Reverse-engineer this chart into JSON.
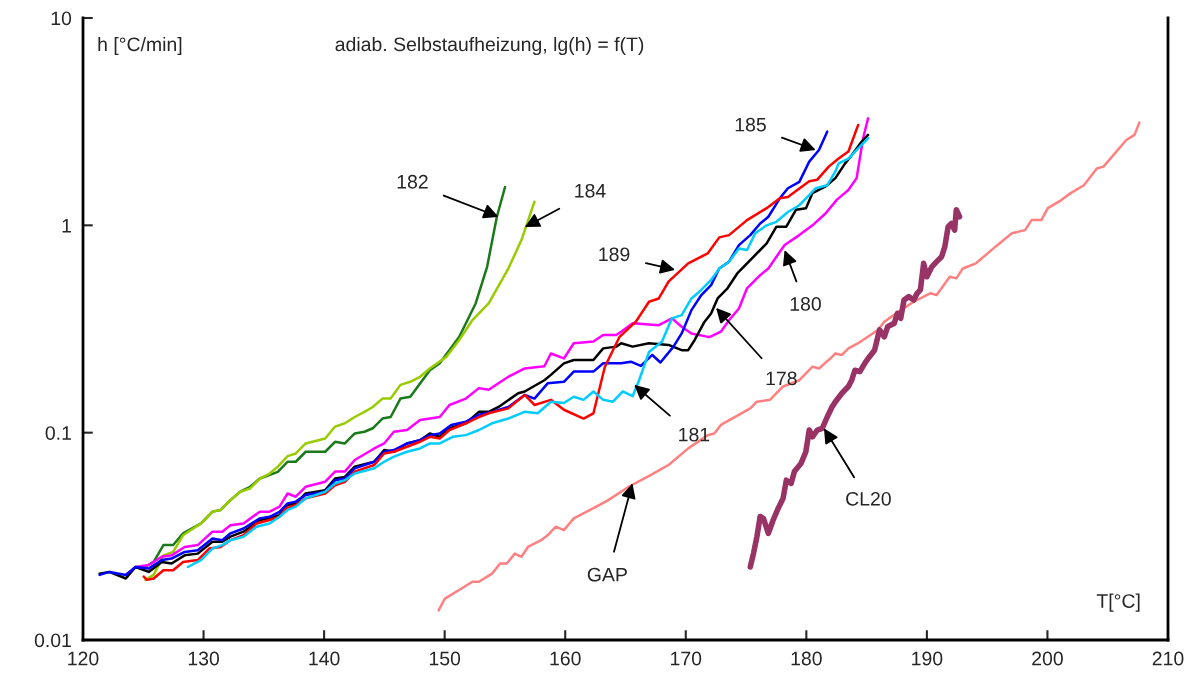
{
  "chart_data": {
    "type": "line",
    "title": "adiab. Selbstaufheizung, lg(h) = f(T)",
    "ylabel": "h [°C/min]",
    "xlabel": "T[°C]",
    "log": "y",
    "xlim": [
      120,
      210
    ],
    "xticks": [
      120,
      130,
      140,
      150,
      160,
      170,
      180,
      190,
      200,
      210
    ],
    "ylim": [
      0.01,
      10
    ],
    "yticks": [
      0.01,
      0.1,
      1,
      10
    ],
    "series": [
      {
        "color": "#1a7a1a",
        "x": [
          124.91,
          125.86,
          126.67,
          127.48,
          128.3,
          129.79,
          130.74,
          131.42,
          132.23,
          133.04,
          133.86,
          134.67,
          136.16,
          136.97,
          137.65,
          138.47,
          140.09,
          140.91,
          141.72,
          142.54,
          143.35,
          144.03,
          144.84,
          145.52,
          146.33,
          147.15,
          148.77,
          149.59,
          151.21,
          152.57,
          153.52,
          154.33,
          155.01
        ],
        "values": [
          0.0221,
          0.0238,
          0.0287,
          0.0287,
          0.0327,
          0.0365,
          0.0416,
          0.0424,
          0.0473,
          0.0519,
          0.0548,
          0.0601,
          0.0647,
          0.0724,
          0.0724,
          0.0809,
          0.0809,
          0.0904,
          0.0887,
          0.0991,
          0.101,
          0.105,
          0.117,
          0.119,
          0.146,
          0.149,
          0.2,
          0.216,
          0.29,
          0.42,
          0.631,
          1.1,
          1.53
        ]
      },
      {
        "color": "#99cc00",
        "x": [
          125.18,
          125.86,
          126.67,
          127.48,
          128.3,
          129.79,
          130.74,
          131.42,
          132.23,
          133.04,
          133.86,
          134.67,
          135.48,
          136.16,
          136.97,
          137.65,
          138.47,
          140.09,
          140.91,
          141.72,
          142.54,
          143.35,
          144.03,
          144.84,
          145.52,
          146.33,
          147.15,
          147.96,
          148.77,
          150.13,
          151.21,
          152.3,
          153.65,
          155.28,
          156.37,
          157.45
        ],
        "values": [
          0.0195,
          0.0206,
          0.0256,
          0.0266,
          0.032,
          0.0365,
          0.0416,
          0.0424,
          0.0473,
          0.0519,
          0.0538,
          0.0601,
          0.0635,
          0.0686,
          0.0771,
          0.0794,
          0.0887,
          0.0938,
          0.107,
          0.111,
          0.119,
          0.126,
          0.133,
          0.146,
          0.146,
          0.17,
          0.176,
          0.186,
          0.204,
          0.232,
          0.28,
          0.349,
          0.42,
          0.619,
          0.849,
          1.3
        ]
      },
      {
        "color": "#ff00ff",
        "x": [
          123.55,
          124.36,
          125.45,
          126.53,
          127.35,
          128.43,
          129.52,
          130.74,
          131.55,
          132.23,
          133.31,
          134.67,
          135.48,
          136.3,
          136.97,
          137.65,
          138.47,
          140.09,
          140.91,
          141.72,
          142.54,
          144.16,
          144.98,
          145.79,
          146.88,
          147.96,
          149.59,
          150.4,
          151.76,
          152.84,
          153.65,
          155.28,
          156.64,
          158.27,
          158.81,
          159.89,
          160.71,
          162.34,
          163.15,
          164.23,
          164.64,
          165.59,
          167.76,
          168.85,
          169.66,
          170.47,
          171.96,
          172.91,
          173.59,
          174.41,
          175.08,
          176.17,
          176.85,
          177.52,
          178.2,
          179.42,
          180.51,
          181.59,
          182.54,
          183.49,
          184.17,
          184.71,
          185.12
        ],
        "values": [
          0.0206,
          0.0225,
          0.023,
          0.0252,
          0.0256,
          0.0281,
          0.0287,
          0.0333,
          0.0333,
          0.0358,
          0.0365,
          0.0416,
          0.0416,
          0.044,
          0.0509,
          0.0491,
          0.0548,
          0.058,
          0.0649,
          0.0649,
          0.0738,
          0.0839,
          0.0887,
          0.101,
          0.103,
          0.115,
          0.119,
          0.136,
          0.146,
          0.164,
          0.161,
          0.186,
          0.204,
          0.209,
          0.241,
          0.228,
          0.27,
          0.275,
          0.296,
          0.296,
          0.307,
          0.337,
          0.33,
          0.356,
          0.324,
          0.301,
          0.289,
          0.307,
          0.349,
          0.397,
          0.497,
          0.575,
          0.619,
          0.706,
          0.803,
          0.897,
          1.0,
          1.14,
          1.33,
          1.48,
          1.69,
          2.63,
          3.28
        ]
      },
      {
        "color": "#000000",
        "x": [
          121.38,
          122.19,
          123.55,
          124.36,
          125.45,
          126.53,
          127.35,
          128.43,
          129.52,
          130.74,
          131.55,
          132.23,
          133.31,
          134.67,
          135.48,
          136.3,
          136.97,
          137.65,
          138.47,
          140.09,
          140.91,
          141.72,
          142.54,
          144.16,
          144.98,
          145.79,
          146.88,
          147.96,
          148.77,
          149.59,
          150.4,
          151.76,
          152.84,
          153.65,
          154.47,
          156.1,
          156.64,
          158.27,
          158.81,
          159.89,
          160.71,
          162.34,
          163.15,
          164.23,
          164.64,
          165.59,
          166.95,
          168.57,
          169.66,
          170.2,
          170.74,
          171.56,
          172.1,
          172.64,
          173.46,
          174.27,
          175.35,
          176.71,
          177.52,
          178.34,
          179.15,
          179.97,
          180.51,
          181.59,
          182.41,
          183.22,
          183.76,
          184.58,
          185.12
        ],
        "values": [
          0.0209,
          0.0213,
          0.0198,
          0.0225,
          0.0213,
          0.0238,
          0.0234,
          0.0256,
          0.0261,
          0.0298,
          0.0298,
          0.0315,
          0.0333,
          0.0379,
          0.0386,
          0.04,
          0.0448,
          0.0456,
          0.0509,
          0.0528,
          0.0601,
          0.0612,
          0.0686,
          0.0724,
          0.0824,
          0.0809,
          0.0887,
          0.092,
          0.0991,
          0.0955,
          0.105,
          0.111,
          0.126,
          0.126,
          0.133,
          0.155,
          0.158,
          0.179,
          0.19,
          0.216,
          0.224,
          0.224,
          0.255,
          0.26,
          0.27,
          0.26,
          0.27,
          0.265,
          0.25,
          0.25,
          0.28,
          0.343,
          0.376,
          0.444,
          0.497,
          0.586,
          0.68,
          0.818,
          0.985,
          0.985,
          1.19,
          1.21,
          1.43,
          1.54,
          1.69,
          1.99,
          2.18,
          2.53,
          2.73
        ]
      },
      {
        "color": "#0000ff",
        "x": [
          121.38,
          122.19,
          123.55,
          124.36,
          125.45,
          126.53,
          127.35,
          128.43,
          129.52,
          130.74,
          131.55,
          132.23,
          133.31,
          134.67,
          135.48,
          136.3,
          136.97,
          137.65,
          138.47,
          140.09,
          140.91,
          141.72,
          142.54,
          144.16,
          144.98,
          145.79,
          146.88,
          147.96,
          148.77,
          149.59,
          150.54,
          151.76,
          152.84,
          153.93,
          155.28,
          156.64,
          157.45,
          158.54,
          159.89,
          160.71,
          162.34,
          163.15,
          164.64,
          165.45,
          166.27,
          167.22,
          167.9,
          168.98,
          169.66,
          170.47,
          171.29,
          172.1,
          172.78,
          173.59,
          174.41,
          175.35,
          176.17,
          176.85,
          177.8,
          178.47,
          179.42,
          180.24,
          181.05,
          181.73
        ],
        "values": [
          0.0206,
          0.0213,
          0.0206,
          0.0225,
          0.0221,
          0.0243,
          0.0247,
          0.0266,
          0.0271,
          0.0309,
          0.0303,
          0.0327,
          0.0345,
          0.0386,
          0.0393,
          0.0415,
          0.0456,
          0.0465,
          0.05,
          0.0519,
          0.059,
          0.0601,
          0.0673,
          0.0724,
          0.0809,
          0.0824,
          0.0887,
          0.092,
          0.0973,
          0.0991,
          0.109,
          0.113,
          0.122,
          0.126,
          0.133,
          0.152,
          0.146,
          0.173,
          0.176,
          0.197,
          0.197,
          0.216,
          0.216,
          0.22,
          0.21,
          0.237,
          0.218,
          0.26,
          0.301,
          0.39,
          0.461,
          0.515,
          0.619,
          0.668,
          0.803,
          0.897,
          1.02,
          1.1,
          1.35,
          1.51,
          1.62,
          2.03,
          2.31,
          2.83
        ]
      },
      {
        "color": "#ff0000",
        "x": [
          125.04,
          125.31,
          125.86,
          126.67,
          127.48,
          128.3,
          129.52,
          130.47,
          131.42,
          132.23,
          133.31,
          134.4,
          135.48,
          136.3,
          136.84,
          137.65,
          138.47,
          140.09,
          140.91,
          141.72,
          142.54,
          144.16,
          144.98,
          145.79,
          146.88,
          147.96,
          148.77,
          149.59,
          150.4,
          151.76,
          152.84,
          153.65,
          155.28,
          156.64,
          157.45,
          158.81,
          159.89,
          161.52,
          162.34,
          163.29,
          164.51,
          165.86,
          166.95,
          167.76,
          168.57,
          170.2,
          171.83,
          172.78,
          173.59,
          175.08,
          176.71,
          177.8,
          178.47,
          180.24,
          180.91,
          181.86,
          182.68,
          183.49,
          184.3
        ],
        "values": [
          0.0202,
          0.0195,
          0.0198,
          0.0217,
          0.0217,
          0.0238,
          0.0243,
          0.0276,
          0.0281,
          0.0303,
          0.032,
          0.0365,
          0.0379,
          0.0393,
          0.0431,
          0.0448,
          0.0482,
          0.0509,
          0.0558,
          0.0579,
          0.0649,
          0.0698,
          0.0794,
          0.0809,
          0.0855,
          0.0904,
          0.0955,
          0.0938,
          0.103,
          0.111,
          0.119,
          0.124,
          0.131,
          0.152,
          0.136,
          0.144,
          0.129,
          0.117,
          0.124,
          0.208,
          0.29,
          0.343,
          0.428,
          0.444,
          0.535,
          0.656,
          0.733,
          0.875,
          0.897,
          1.06,
          1.21,
          1.35,
          1.37,
          1.63,
          1.66,
          1.92,
          2.1,
          2.27,
          3.05
        ]
      },
      {
        "color": "#00ccff",
        "x": [
          128.7,
          129.79,
          130.74,
          131.55,
          132.23,
          133.31,
          134.4,
          135.48,
          136.3,
          136.97,
          137.65,
          138.47,
          140.09,
          140.91,
          141.72,
          142.54,
          144.16,
          144.98,
          145.79,
          146.88,
          147.96,
          148.77,
          149.59,
          150.67,
          151.76,
          152.84,
          153.93,
          155.28,
          156.64,
          157.72,
          158.81,
          159.89,
          160.71,
          161.52,
          162.34,
          163.15,
          163.96,
          164.78,
          165.59,
          166.13,
          166.95,
          168.03,
          168.85,
          169.66,
          170.47,
          171.29,
          172.1,
          172.78,
          173.59,
          174.41,
          175.08,
          175.76,
          176.71,
          177.52,
          178.47,
          179.42,
          180.24,
          180.78,
          181.73,
          182.41,
          182.68,
          183.49,
          184.3,
          185.12
        ],
        "values": [
          0.0225,
          0.0243,
          0.0276,
          0.0287,
          0.0303,
          0.0315,
          0.0352,
          0.0365,
          0.0393,
          0.0424,
          0.044,
          0.0482,
          0.0519,
          0.0569,
          0.059,
          0.0635,
          0.0673,
          0.0724,
          0.0766,
          0.0809,
          0.0839,
          0.0887,
          0.0887,
          0.0955,
          0.0973,
          0.103,
          0.111,
          0.117,
          0.126,
          0.124,
          0.141,
          0.139,
          0.149,
          0.144,
          0.158,
          0.144,
          0.141,
          0.158,
          0.15,
          0.179,
          0.245,
          0.275,
          0.356,
          0.369,
          0.444,
          0.488,
          0.545,
          0.619,
          0.668,
          0.774,
          0.76,
          0.915,
          1.0,
          1.04,
          1.16,
          1.25,
          1.4,
          1.51,
          1.56,
          1.82,
          1.99,
          2.1,
          2.35,
          2.63
        ]
      },
      {
        "color": "#ff8080",
        "x": [
          149.5,
          150.0,
          152.3,
          152.84,
          153.93,
          154.6,
          155.15,
          155.82,
          156.37,
          156.91,
          158.0,
          158.54,
          159.22,
          159.89,
          160.71,
          162.07,
          163.5,
          165.3,
          167.0,
          168.6,
          170.2,
          171.83,
          172.37,
          172.91,
          175.35,
          175.9,
          176.98,
          178.07,
          179.42,
          180.51,
          181.05,
          182.13,
          182.41,
          182.95,
          183.49,
          184.3,
          185.93,
          186.47,
          187.83,
          188.91,
          190.27,
          190.81,
          191.9,
          192.44,
          192.98,
          194.07,
          195.69,
          197.05,
          198.14,
          198.68,
          199.49,
          200.03,
          201.12,
          201.93,
          203.02,
          204.1,
          204.65,
          206.54,
          207.22,
          207.63
        ],
        "values": [
          0.0139,
          0.0158,
          0.0191,
          0.0191,
          0.0209,
          0.0234,
          0.0234,
          0.0261,
          0.0252,
          0.0281,
          0.0303,
          0.032,
          0.0352,
          0.0339,
          0.0386,
          0.0424,
          0.047,
          0.055,
          0.062,
          0.07,
          0.084,
          0.0973,
          0.0991,
          0.109,
          0.131,
          0.141,
          0.144,
          0.167,
          0.179,
          0.208,
          0.204,
          0.232,
          0.241,
          0.237,
          0.255,
          0.27,
          0.313,
          0.343,
          0.39,
          0.428,
          0.47,
          0.461,
          0.565,
          0.555,
          0.619,
          0.656,
          0.789,
          0.915,
          0.948,
          1.06,
          1.06,
          1.21,
          1.32,
          1.43,
          1.56,
          1.88,
          1.92,
          2.58,
          2.73,
          3.13
        ]
      },
      {
        "color": "#993366",
        "x": [
          175.35,
          175.62,
          175.9,
          176.17,
          176.44,
          176.85,
          177.25,
          177.66,
          178.07,
          178.34,
          178.74,
          179.01,
          179.56,
          179.96,
          180.24,
          180.51,
          180.91,
          181.32,
          181.73,
          182.13,
          182.41,
          182.95,
          183.49,
          183.76,
          184.03,
          184.44,
          184.85,
          185.12,
          185.66,
          185.93,
          186.07,
          186.47,
          186.74,
          187.29,
          187.56,
          187.83,
          188.1,
          188.51,
          188.91,
          189.19,
          189.46,
          189.73,
          190.0,
          190.41,
          190.81,
          191.22,
          191.49,
          191.76,
          192.03,
          192.3,
          192.44,
          192.71
        ],
        "values": [
          0.0225,
          0.0262,
          0.0315,
          0.0394,
          0.0386,
          0.0327,
          0.0379,
          0.0431,
          0.0482,
          0.059,
          0.0569,
          0.0649,
          0.0711,
          0.0809,
          0.103,
          0.0955,
          0.103,
          0.105,
          0.119,
          0.133,
          0.141,
          0.155,
          0.167,
          0.179,
          0.2,
          0.197,
          0.216,
          0.228,
          0.25,
          0.29,
          0.313,
          0.29,
          0.324,
          0.337,
          0.376,
          0.356,
          0.436,
          0.453,
          0.436,
          0.47,
          0.488,
          0.656,
          0.565,
          0.631,
          0.668,
          0.706,
          0.789,
          0.985,
          1.02,
          0.948,
          1.19,
          1.1
        ]
      }
    ],
    "annotations": [
      {
        "text": "182",
        "x": 154.47,
        "y": 1.1
      },
      {
        "text": "184",
        "x": 156.64,
        "y": 0.98
      },
      {
        "text": "185",
        "x": 180.78,
        "y": 2.31
      },
      {
        "text": "189",
        "x": 169.12,
        "y": 0.61
      },
      {
        "text": "180",
        "x": 178.2,
        "y": 0.76
      },
      {
        "text": "178",
        "x": 172.51,
        "y": 0.4
      },
      {
        "text": "181",
        "x": 165.72,
        "y": 0.17
      },
      {
        "text": "CL20",
        "x": 181.46,
        "y": 0.105
      },
      {
        "text": "GAP",
        "x": 165.57,
        "y": 0.057
      }
    ]
  }
}
